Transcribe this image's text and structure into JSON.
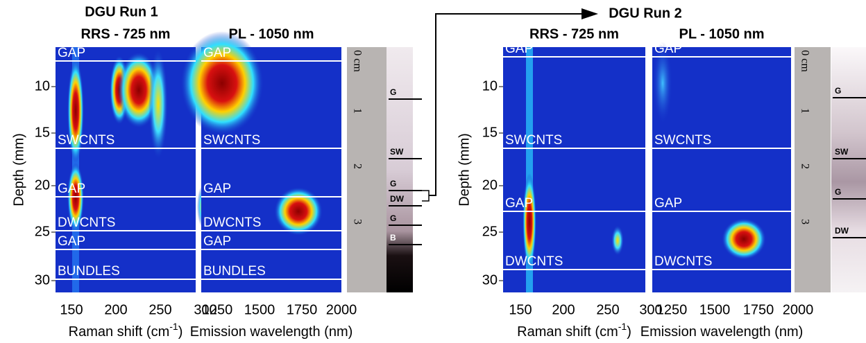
{
  "y_axis_label": "Depth (mm)",
  "runs": [
    {
      "title": "DGU Run 1",
      "y_ticks": [
        "10",
        "15",
        "20",
        "25",
        "30"
      ],
      "panels": [
        {
          "title": "RRS - 725 nm",
          "x_ticks": [
            "150",
            "200",
            "250",
            "300"
          ],
          "x_label": {
            "text": "Raman shift (cm",
            "sup": "-1",
            "end": ")"
          }
        },
        {
          "title": "PL - 1050 nm",
          "x_ticks": [
            "1250",
            "1500",
            "1750",
            "2000"
          ],
          "x_label": {
            "text": "Emission wavelength (nm)"
          }
        }
      ],
      "bands": [
        "GAP",
        "SWCNTS",
        "GAP",
        "DWCNTS",
        "GAP",
        "BUNDLES"
      ],
      "tube": {
        "ruler": [
          "0 cm",
          "1",
          "2",
          "3"
        ],
        "labels": [
          "G",
          "SW",
          "G",
          "DW",
          "G",
          "B"
        ]
      }
    },
    {
      "title": "DGU Run 2",
      "y_ticks": [
        "10",
        "15",
        "20",
        "25",
        "30"
      ],
      "panels": [
        {
          "title": "RRS - 725 nm",
          "x_ticks": [
            "150",
            "200",
            "250",
            "300"
          ],
          "x_label": {
            "text": "Raman shift (cm",
            "sup": "-1",
            "end": ")"
          }
        },
        {
          "title": "PL - 1050 nm",
          "x_ticks": [
            "1250",
            "1500",
            "1750",
            "2000"
          ],
          "x_label": {
            "text": "Emission wavelength (nm)"
          }
        }
      ],
      "bands": [
        "GAP",
        "SWCNTS",
        "GAP",
        "DWCNTS"
      ],
      "tube": {
        "ruler": [
          "0 cm",
          "1",
          "2",
          "3"
        ],
        "labels": [
          "G",
          "SW",
          "G",
          "DW"
        ]
      }
    }
  ]
}
